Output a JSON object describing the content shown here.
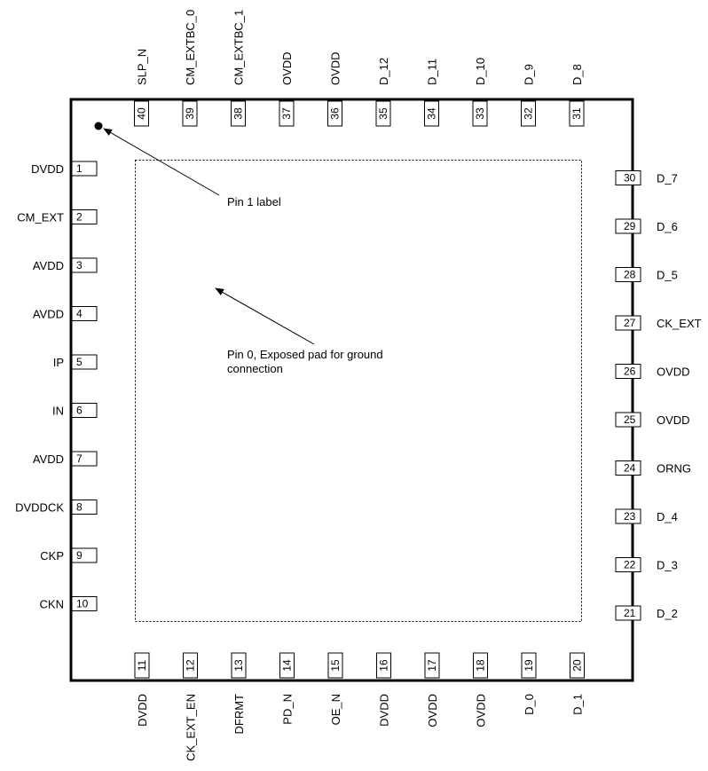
{
  "pins": {
    "left": [
      {
        "num": "1",
        "name": "DVDD"
      },
      {
        "num": "2",
        "name": "CM_EXT"
      },
      {
        "num": "3",
        "name": "AVDD"
      },
      {
        "num": "4",
        "name": "AVDD"
      },
      {
        "num": "5",
        "name": "IP"
      },
      {
        "num": "6",
        "name": "IN"
      },
      {
        "num": "7",
        "name": "AVDD"
      },
      {
        "num": "8",
        "name": "DVDDCK"
      },
      {
        "num": "9",
        "name": "CKP"
      },
      {
        "num": "10",
        "name": "CKN"
      }
    ],
    "bottom": [
      {
        "num": "11",
        "name": "DVDD"
      },
      {
        "num": "12",
        "name": "CK_EXT_EN"
      },
      {
        "num": "13",
        "name": "DFRMT"
      },
      {
        "num": "14",
        "name": "PD_N"
      },
      {
        "num": "15",
        "name": "OE_N"
      },
      {
        "num": "16",
        "name": "DVDD"
      },
      {
        "num": "17",
        "name": "OVDD"
      },
      {
        "num": "18",
        "name": "OVDD"
      },
      {
        "num": "19",
        "name": "D_0"
      },
      {
        "num": "20",
        "name": "D_1"
      }
    ],
    "right": [
      {
        "num": "21",
        "name": "D_2"
      },
      {
        "num": "22",
        "name": "D_3"
      },
      {
        "num": "23",
        "name": "D_4"
      },
      {
        "num": "24",
        "name": "ORNG"
      },
      {
        "num": "25",
        "name": "OVDD"
      },
      {
        "num": "26",
        "name": "OVDD"
      },
      {
        "num": "27",
        "name": "CK_EXT"
      },
      {
        "num": "28",
        "name": "D_5"
      },
      {
        "num": "29",
        "name": "D_6"
      },
      {
        "num": "30",
        "name": "D_7"
      }
    ],
    "top": [
      {
        "num": "31",
        "name": "D_8"
      },
      {
        "num": "32",
        "name": "D_9"
      },
      {
        "num": "33",
        "name": "D_10"
      },
      {
        "num": "34",
        "name": "D_11"
      },
      {
        "num": "35",
        "name": "D_12"
      },
      {
        "num": "36",
        "name": "OVDD"
      },
      {
        "num": "37",
        "name": "OVDD"
      },
      {
        "num": "38",
        "name": "CM_EXTBC_1"
      },
      {
        "num": "39",
        "name": "CM_EXTBC_0"
      },
      {
        "num": "40",
        "name": "SLP_N"
      }
    ]
  },
  "annotations": {
    "pin1_label": "Pin 1 label",
    "exposed_pad_line1": "Pin 0, Exposed pad for ground",
    "exposed_pad_line2": "connection"
  }
}
